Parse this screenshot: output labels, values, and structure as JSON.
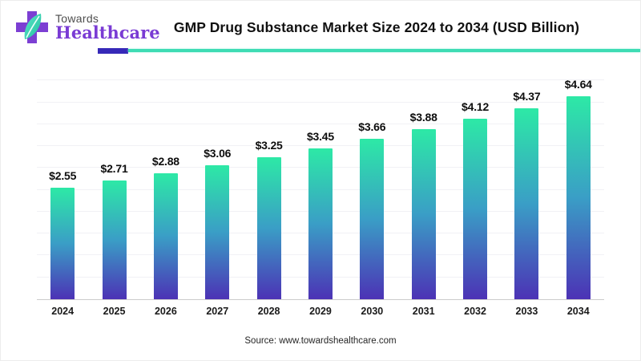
{
  "header": {
    "logo": {
      "brand_top": "Towards",
      "brand_bottom": "Healthcare"
    },
    "title": "GMP Drug Substance Market Size 2024 to 2034 (USD Billion)"
  },
  "footer": {
    "source": "Source: www.towardshealthcare.com"
  },
  "colors": {
    "bar_top": "#2DE9A6",
    "bar_mid": "#3A9EC6",
    "bar_bottom": "#4C32B5",
    "accent_purple": "#3629B8",
    "accent_teal": "#3EDCB4",
    "logo_purple": "#7C3FD3",
    "leaf_teal_light": "#5CE8C8",
    "leaf_teal_dark": "#21BD9E"
  },
  "chart_data": {
    "type": "bar",
    "title": "GMP Drug Substance Market Size 2024 to 2034 (USD Billion)",
    "categories": [
      "2024",
      "2025",
      "2026",
      "2027",
      "2028",
      "2029",
      "2030",
      "2031",
      "2032",
      "2033",
      "2034"
    ],
    "values": [
      2.55,
      2.71,
      2.88,
      3.06,
      3.25,
      3.45,
      3.66,
      3.88,
      4.12,
      4.37,
      4.64
    ],
    "value_labels": [
      "$2.55",
      "$2.71",
      "$2.88",
      "$3.06",
      "$3.25",
      "$3.45",
      "$3.66",
      "$3.88",
      "$4.12",
      "$4.37",
      "$4.64"
    ],
    "xlabel": "",
    "ylabel": "",
    "ylim": [
      0,
      5.08
    ],
    "gridline_step": 0.5,
    "grid": true,
    "legend": "none",
    "currency": "USD Billion"
  }
}
